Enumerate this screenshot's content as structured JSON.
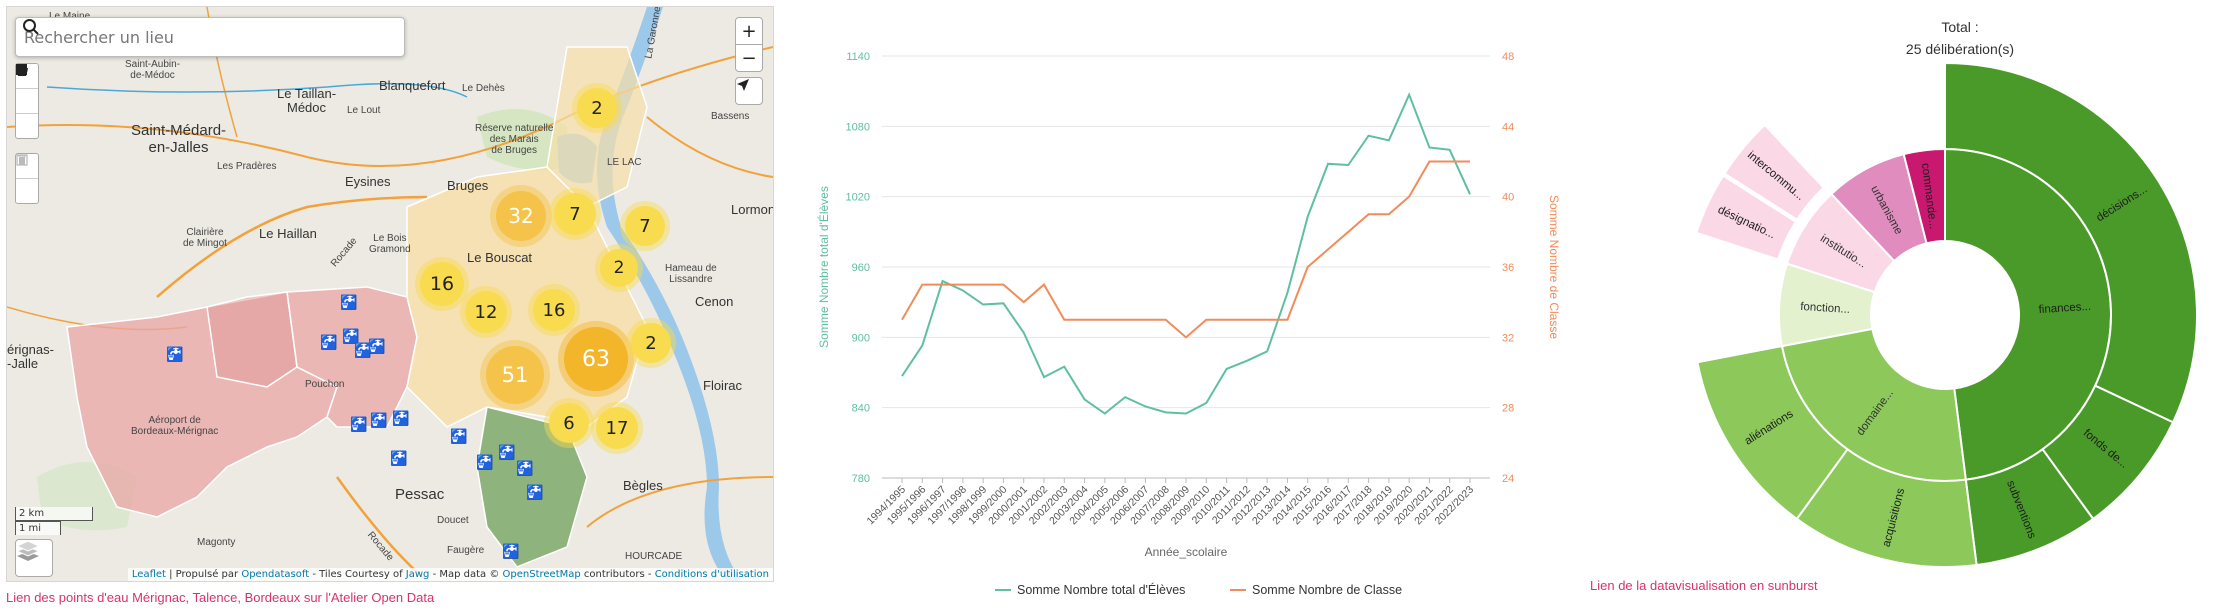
{
  "map": {
    "search_placeholder": "Rechercher un lieu",
    "zoom_in": "+",
    "zoom_out": "−",
    "scale_km": "2 km",
    "scale_mi": "1 mi",
    "attribution": {
      "leaflet": "Leaflet",
      "propulse": " | Propulsé par ",
      "opendatasoft": "Opendatasoft",
      "tiles": " - Tiles Courtesy of ",
      "jawg": "Jawg",
      "mapdata": " - Map data © ",
      "osm": "OpenStreetMap",
      "contrib": " contributors - ",
      "conditions": "Conditions d'utilisation"
    },
    "places": [
      {
        "name": "Le Maine",
        "cls": "sm"
      },
      {
        "name": "Saint-Aubin-\nde-Médoc",
        "cls": "sm"
      },
      {
        "name": "Le Taillan-\nMédoc",
        "cls": "med"
      },
      {
        "name": "Le Lout",
        "cls": "sm"
      },
      {
        "name": "Blanquefort",
        "cls": "med"
      },
      {
        "name": "Le Dehès",
        "cls": "sm"
      },
      {
        "name": "Saint-Médard-\nen-Jalles",
        "cls": "big"
      },
      {
        "name": "Réserve naturelle\ndes Marais\nde Bruges",
        "cls": "sm"
      },
      {
        "name": "Bassens",
        "cls": "sm"
      },
      {
        "name": "Les Pradères",
        "cls": "sm"
      },
      {
        "name": "Eysines",
        "cls": "med"
      },
      {
        "name": "Bruges",
        "cls": "med"
      },
      {
        "name": "LE LAC",
        "cls": "sm"
      },
      {
        "name": "Lormont",
        "cls": "med"
      },
      {
        "name": "Clairière\nde Mingot",
        "cls": "sm"
      },
      {
        "name": "Le Haillan",
        "cls": "med"
      },
      {
        "name": "Le Bois\nGramond",
        "cls": "sm"
      },
      {
        "name": "Le Bouscat",
        "cls": "med"
      },
      {
        "name": "Hameau de\nLissandre",
        "cls": "sm"
      },
      {
        "name": "Cenon",
        "cls": "med"
      },
      {
        "name": "érignas-\n-Jalle",
        "cls": "med"
      },
      {
        "name": "Floirac",
        "cls": "med"
      },
      {
        "name": "Aéroport de\nBordeaux-Mérignac",
        "cls": "sm"
      },
      {
        "name": "Pouchon",
        "cls": "sm"
      },
      {
        "name": "Pessac",
        "cls": "big"
      },
      {
        "name": "Bègles",
        "cls": "med"
      },
      {
        "name": "Doucet",
        "cls": "sm"
      },
      {
        "name": "Magonty",
        "cls": "sm"
      },
      {
        "name": "Faugère",
        "cls": "sm"
      },
      {
        "name": "HOURCADE",
        "cls": "sm"
      },
      {
        "name": "Rocade",
        "cls": "sm"
      },
      {
        "name": "Rocade",
        "cls": "sm"
      },
      {
        "name": "La Garonne",
        "cls": "sm"
      }
    ],
    "clusters": [
      {
        "count": "2",
        "kind": "y"
      },
      {
        "count": "32",
        "kind": "o2"
      },
      {
        "count": "7",
        "kind": "y"
      },
      {
        "count": "7",
        "kind": "y"
      },
      {
        "count": "2",
        "kind": "y"
      },
      {
        "count": "16",
        "kind": "y"
      },
      {
        "count": "12",
        "kind": "y"
      },
      {
        "count": "16",
        "kind": "y"
      },
      {
        "count": "63",
        "kind": "o"
      },
      {
        "count": "2",
        "kind": "y"
      },
      {
        "count": "51",
        "kind": "o2"
      },
      {
        "count": "6",
        "kind": "y"
      },
      {
        "count": "17",
        "kind": "y"
      }
    ],
    "caption": "Lien des points d'eau Mérignac, Talence, Bordeaux sur l'Atelier Open Data"
  },
  "chart_data": {
    "type": "line",
    "categories": [
      "1994/1995",
      "1995/1996",
      "1996/1997",
      "1997/1998",
      "1998/1999",
      "1999/2000",
      "2000/2001",
      "2001/2002",
      "2002/2003",
      "2003/2004",
      "2004/2005",
      "2005/2006",
      "2006/2007",
      "2007/2008",
      "2008/2009",
      "2009/2010",
      "2010/2011",
      "2011/2012",
      "2012/2013",
      "2013/2014",
      "2014/2015",
      "2015/2016",
      "2016/2017",
      "2017/2018",
      "2018/2019",
      "2019/2020",
      "2020/2021",
      "2021/2022",
      "2022/2023"
    ],
    "series": [
      {
        "name": "Somme Nombre total d'Élèves",
        "axis": "left",
        "color": "#5fbfa0",
        "values": [
          867,
          893,
          948,
          940,
          928,
          929,
          904,
          866,
          875,
          847,
          835,
          849,
          841,
          836,
          835,
          844,
          873,
          880,
          888,
          938,
          1003,
          1048,
          1047,
          1072,
          1068,
          1107,
          1062,
          1060,
          1022
        ]
      },
      {
        "name": "Somme Nombre de Classe",
        "axis": "right",
        "color": "#f08c5a",
        "values": [
          33,
          35,
          35,
          35,
          35,
          35,
          34,
          35,
          33,
          33,
          33,
          33,
          33,
          33,
          32,
          33,
          33,
          33,
          33,
          33,
          36,
          37,
          38,
          39,
          39,
          40,
          42,
          42,
          42
        ]
      }
    ],
    "xlabel": "Année_scolaire",
    "ylabel_left": "Somme Nombre total d'Élèves",
    "ylabel_right": "Somme Nombre de Classe",
    "yticks_left": [
      780,
      840,
      900,
      960,
      1020,
      1080,
      1140
    ],
    "yticks_right": [
      24,
      28,
      32,
      36,
      40,
      44,
      48
    ],
    "ylim_left": [
      780,
      1140
    ],
    "ylim_right": [
      24,
      48
    ],
    "legend_position": "bottom"
  },
  "sunburst": {
    "total_line1": "Total :",
    "total_line2": "25 délibération(s)",
    "inner": [
      {
        "label": "finances...",
        "value": 12,
        "color": "#4a9a2a"
      },
      {
        "label": "domaine...",
        "value": 6,
        "color": "#8cc95a"
      },
      {
        "label": "fonction...",
        "value": 2,
        "color": "#e3f1cf"
      },
      {
        "label": "institutio...",
        "value": 2,
        "color": "#fbd8e6"
      },
      {
        "label": "urbanisme",
        "value": 2,
        "color": "#e08cbf"
      },
      {
        "label": "commande...",
        "value": 1,
        "color": "#c9186f"
      }
    ],
    "outer": [
      {
        "label": "décisions...",
        "value": 8,
        "color": "#4a9a2a"
      },
      {
        "label": "fonds de...",
        "value": 2,
        "color": "#4a9a2a"
      },
      {
        "label": "subventions",
        "value": 2,
        "color": "#4a9a2a"
      },
      {
        "label": "acquisitions",
        "value": 3,
        "color": "#8cc95a"
      },
      {
        "label": "aliénations",
        "value": 3,
        "color": "#8cc95a"
      },
      {
        "label": "",
        "value": 2,
        "color": "none"
      },
      {
        "label": "désignatio...",
        "value": 1,
        "color": "#fbd8e6"
      },
      {
        "label": "intercommu...",
        "value": 1,
        "color": "#fbd8e6"
      },
      {
        "label": "",
        "value": 3,
        "color": "none"
      }
    ],
    "caption": "Lien de la datavisualisation en sunburst"
  }
}
